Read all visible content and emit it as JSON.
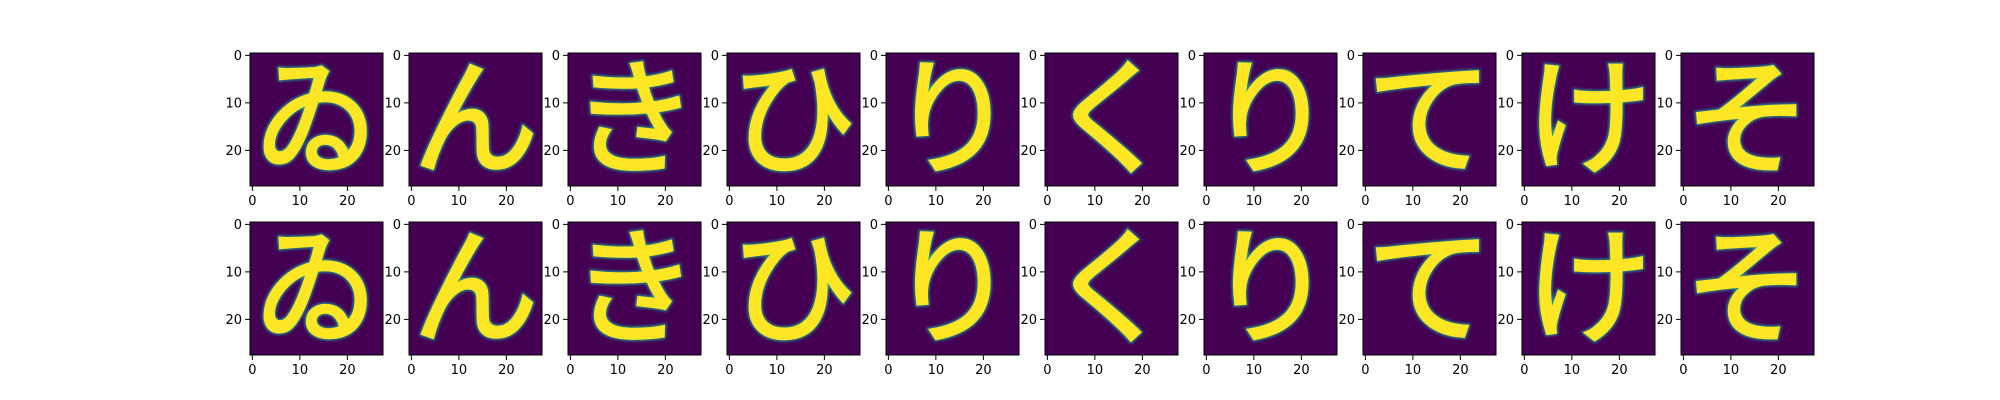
{
  "chart_data": {
    "type": "heatmap",
    "colormap": "viridis",
    "colors": {
      "low": "#440154",
      "mid": "#21918c",
      "high": "#fde725"
    },
    "grid": false,
    "image_size": [
      28,
      28
    ],
    "xlim": [
      0,
      27
    ],
    "ylim": [
      27,
      0
    ],
    "xticks": [
      0,
      10,
      20
    ],
    "yticks": [
      0,
      10,
      20
    ],
    "rows": [
      {
        "name": "",
        "panels": [
          "ゐ",
          "ん",
          "き",
          "ひ",
          "り",
          "く",
          "り",
          "て",
          "け",
          "そ"
        ]
      },
      {
        "name": "",
        "panels": [
          "ゐ",
          "ん",
          "き",
          "ひ",
          "り",
          "く",
          "り",
          "て",
          "け",
          "そ"
        ]
      }
    ]
  }
}
